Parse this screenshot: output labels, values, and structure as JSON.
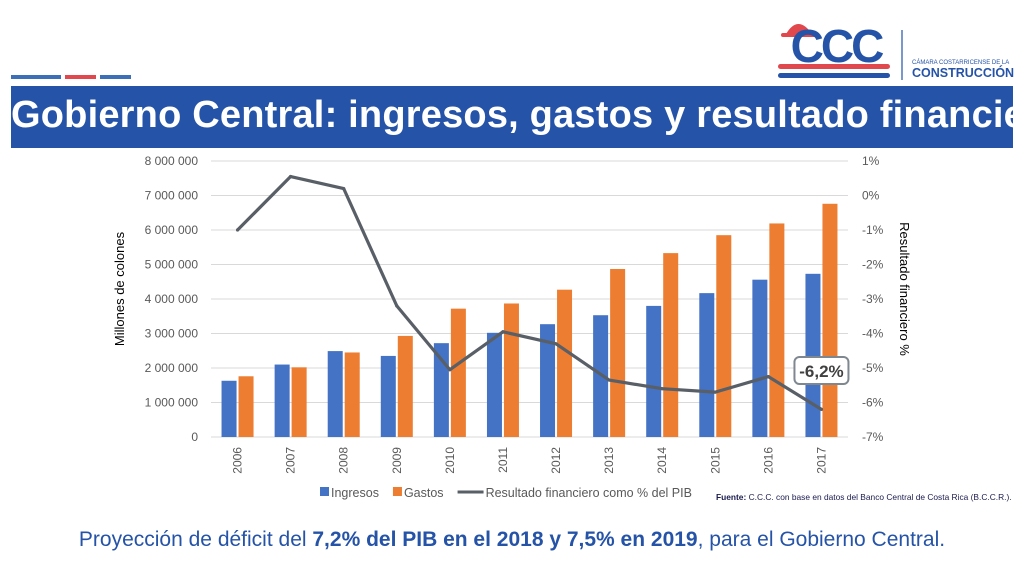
{
  "logo": {
    "brand_text": "CCC",
    "org_line1": "CÁMARA COSTARRICENSE DE LA",
    "org_line2": "CONSTRUCCIÓN",
    "colors": {
      "blue": "#2553a7",
      "red": "#e0484e"
    }
  },
  "title": "Gobierno Central: ingresos, gastos y resultado financiero",
  "source": {
    "label": "Fuente:",
    "text": " C.C.C. con base en datos del Banco Central de Costa Rica (B.C.C.R.)."
  },
  "caption": {
    "part1": "Proyección de déficit del ",
    "bold1": "7,2% del PIB en el 2018 y 7,5% en 2019",
    "part2": ", para el Gobierno Central."
  },
  "chart_data": {
    "type": "bar",
    "categories": [
      "2006",
      "2007",
      "2008",
      "2009",
      "2010",
      "2011",
      "2012",
      "2013",
      "2014",
      "2015",
      "2016",
      "2017"
    ],
    "series": [
      {
        "name": "Ingresos",
        "kind": "bar",
        "axis": "left",
        "color": "#4472c4",
        "values": [
          1630000,
          2100000,
          2490000,
          2350000,
          2720000,
          3020000,
          3270000,
          3530000,
          3800000,
          4170000,
          4560000,
          4730000
        ]
      },
      {
        "name": "Gastos",
        "kind": "bar",
        "axis": "left",
        "color": "#ed7d31",
        "values": [
          1760000,
          2020000,
          2450000,
          2930000,
          3720000,
          3870000,
          4270000,
          4870000,
          5330000,
          5850000,
          6190000,
          6760000
        ]
      },
      {
        "name": "Resultado financiero como % del PIB",
        "kind": "line",
        "axis": "right",
        "color": "#595f66",
        "values": [
          -1.0,
          0.55,
          0.2,
          -3.2,
          -5.05,
          -3.95,
          -4.3,
          -5.35,
          -5.6,
          -5.7,
          -5.25,
          -6.2
        ]
      }
    ],
    "ylabel": "Millones de colones",
    "y2label": "Resultado financiero %",
    "ylim": [
      0,
      8000000
    ],
    "y2lim": [
      -7,
      1
    ],
    "yticks": [
      "0",
      "1 000 000",
      "2 000 000",
      "3 000 000",
      "4 000 000",
      "5 000 000",
      "6 000 000",
      "7 000 000",
      "8 000 000"
    ],
    "y2ticks": [
      "-7%",
      "-6%",
      "-5%",
      "-4%",
      "-3%",
      "-2%",
      "-1%",
      "0%",
      "1%"
    ],
    "annotation": {
      "text": "-6,2%",
      "category": "2017"
    },
    "grid": true,
    "legend_position": "bottom"
  }
}
